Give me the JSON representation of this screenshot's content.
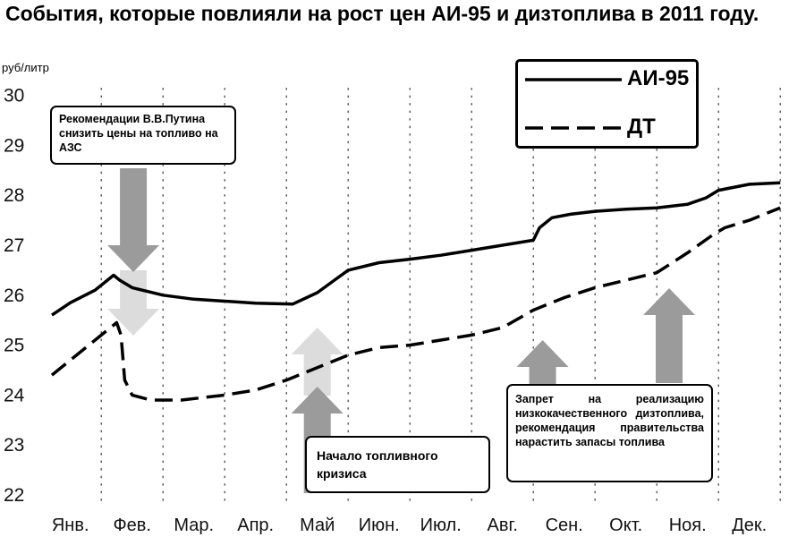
{
  "title": "События, которые повлияли на рост цен АИ-95 и дизтоплива в 2011 году.",
  "unit_label": "руб/литр",
  "legend": [
    {
      "label": "АИ-95",
      "style": "solid"
    },
    {
      "label": "ДТ",
      "style": "dashed"
    }
  ],
  "annotations": {
    "putin": "Рекомендации В.В.Путина снизить цены на топливо на АЗС",
    "crisis": "Начало топливного кризиса",
    "ban": "Запрет на реализацию низкокачественного дизтоплива, рекомендация правительства нарастить запасы топлива"
  },
  "colors": {
    "line": "#000000",
    "arrow_dark": "#9b9b9b",
    "arrow_light": "#dcdcdc",
    "grid": "#444444"
  },
  "chart_data": {
    "type": "line",
    "categories": [
      "Янв.",
      "Фев.",
      "Мар.",
      "Апр.",
      "Май",
      "Июн.",
      "Июл.",
      "Авг.",
      "Сен.",
      "Окт.",
      "Ноя.",
      "Дек."
    ],
    "yticks": [
      22,
      23,
      24,
      25,
      26,
      27,
      28,
      29,
      30
    ],
    "ylim": [
      22,
      30
    ],
    "xlim": [
      0.2,
      12
    ],
    "grid": "vertical dotted",
    "legend_position": "top-right",
    "series": [
      {
        "name": "АИ-95",
        "style": "solid",
        "x": [
          0.2,
          0.5,
          0.9,
          1.2,
          1.3,
          1.5,
          2.0,
          2.5,
          3.0,
          3.5,
          4.1,
          4.5,
          5.0,
          5.5,
          6.0,
          6.5,
          7.0,
          7.5,
          8.0,
          8.1,
          8.3,
          8.6,
          9.0,
          9.5,
          10.0,
          10.5,
          10.8,
          11.0,
          11.5,
          12.0
        ],
        "values": [
          25.6,
          25.85,
          26.1,
          26.4,
          26.3,
          26.15,
          26.0,
          25.92,
          25.88,
          25.84,
          25.82,
          26.05,
          26.5,
          26.65,
          26.72,
          26.8,
          26.9,
          27.0,
          27.1,
          27.35,
          27.55,
          27.62,
          27.68,
          27.72,
          27.75,
          27.82,
          27.95,
          28.1,
          28.22,
          28.25
        ]
      },
      {
        "name": "ДТ",
        "style": "dashed",
        "x": [
          0.2,
          0.5,
          0.9,
          1.25,
          1.32,
          1.38,
          1.5,
          1.8,
          2.3,
          3.0,
          3.5,
          4.0,
          4.5,
          5.0,
          5.5,
          6.0,
          6.5,
          7.0,
          7.5,
          8.0,
          8.5,
          9.0,
          9.5,
          10.0,
          10.5,
          10.9,
          11.1,
          11.5,
          12.0
        ],
        "values": [
          24.4,
          24.7,
          25.1,
          25.45,
          25.2,
          24.3,
          24.0,
          23.9,
          23.9,
          24.0,
          24.1,
          24.3,
          24.55,
          24.8,
          24.95,
          25.0,
          25.1,
          25.2,
          25.35,
          25.7,
          25.95,
          26.15,
          26.3,
          26.45,
          26.85,
          27.2,
          27.35,
          27.5,
          27.75
        ]
      }
    ]
  }
}
